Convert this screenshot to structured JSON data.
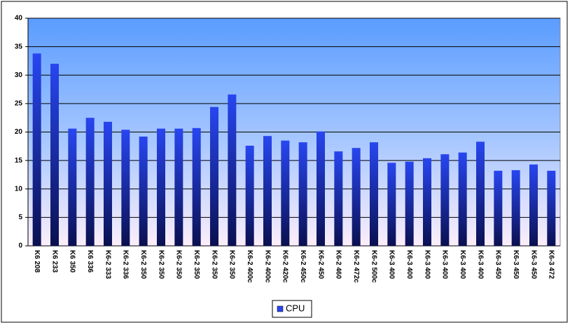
{
  "chart_data": {
    "type": "bar",
    "categories": [
      "K6 208",
      "K6 233",
      "K6 350",
      "K6 336",
      "K6-2 333",
      "K6-2 336",
      "K6-2 350",
      "K6-2 350",
      "K6-2 350",
      "K6-2 350",
      "K6-2 350",
      "K6-2 350",
      "K6-2 400c",
      "K6-2 400c",
      "K6-2 420c",
      "K6-2 450c",
      "K6-2 450",
      "K6-2 460",
      "K6-2 472c",
      "K6-2 500c",
      "K6-3 400",
      "K6-3 400",
      "K6-3 400",
      "K6-3 400",
      "K6-3 400",
      "K6-3 400",
      "K6-3 450",
      "K6-3 450",
      "K6-3 450",
      "K6-3 472"
    ],
    "series": [
      {
        "name": "CPU",
        "color": "#2846f0",
        "values": [
          33.8,
          32.0,
          20.6,
          22.5,
          21.8,
          20.4,
          19.2,
          20.6,
          20.6,
          20.7,
          24.4,
          26.6,
          17.6,
          19.3,
          18.5,
          18.2,
          20.1,
          16.6,
          17.2,
          18.2,
          14.6,
          14.8,
          15.4,
          16.1,
          16.4,
          18.3,
          13.2,
          13.3,
          14.3,
          13.2
        ]
      }
    ],
    "ylim": [
      0,
      40
    ],
    "yticks": [
      0,
      5,
      10,
      15,
      20,
      25,
      30,
      35,
      40
    ],
    "grid": true,
    "legend": "bottom"
  }
}
